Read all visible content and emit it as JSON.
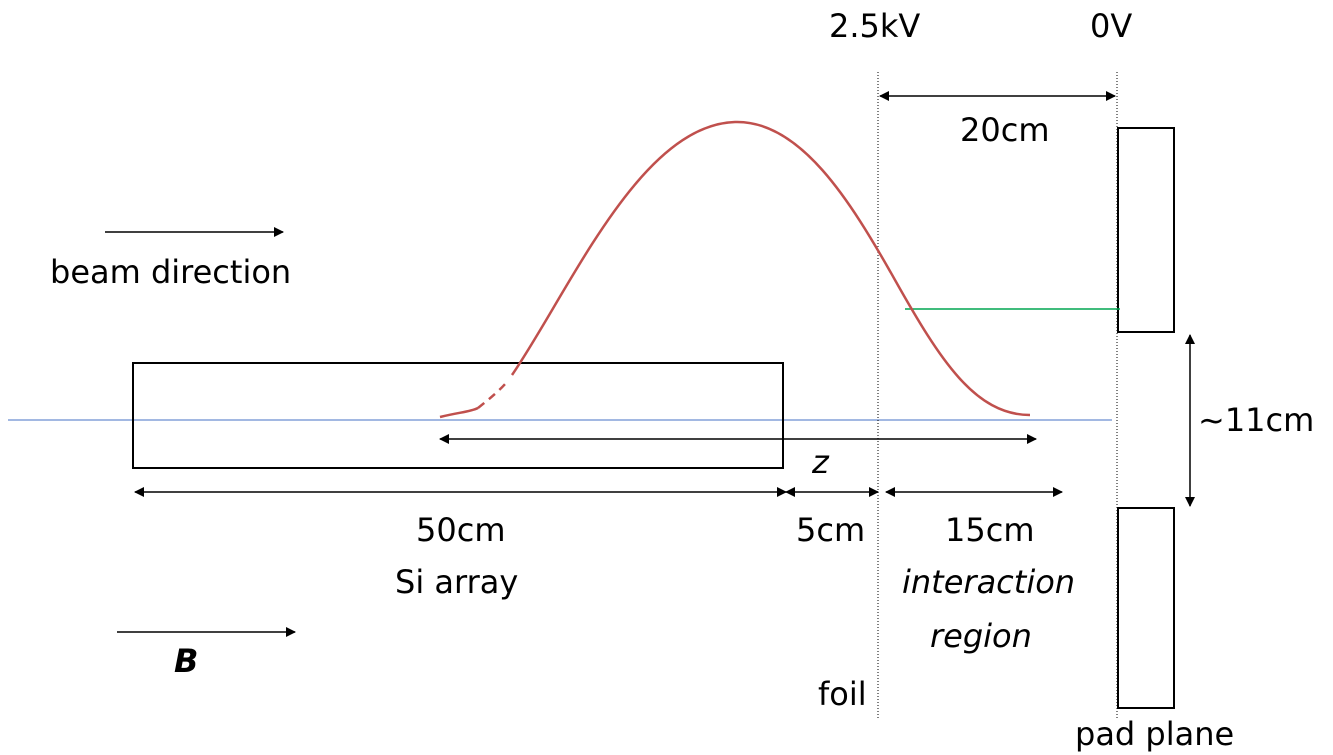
{
  "labels": {
    "voltage_foil": "2.5kV",
    "voltage_pad": "0V",
    "dist_20": "20cm",
    "beam_direction": "beam direction",
    "dist_11": "~11cm",
    "z": "z",
    "dist_50": "50cm",
    "si_array": "Si array",
    "dist_5": "5cm",
    "dist_15": "15cm",
    "interaction": "interaction",
    "region": "region",
    "b_field": "B",
    "foil": "foil",
    "pad_plane": "pad plane"
  },
  "colors": {
    "trajectory": "#c0504d",
    "beam_axis": "#4472c4",
    "green_line": "#00a651",
    "stroke": "#000000"
  }
}
